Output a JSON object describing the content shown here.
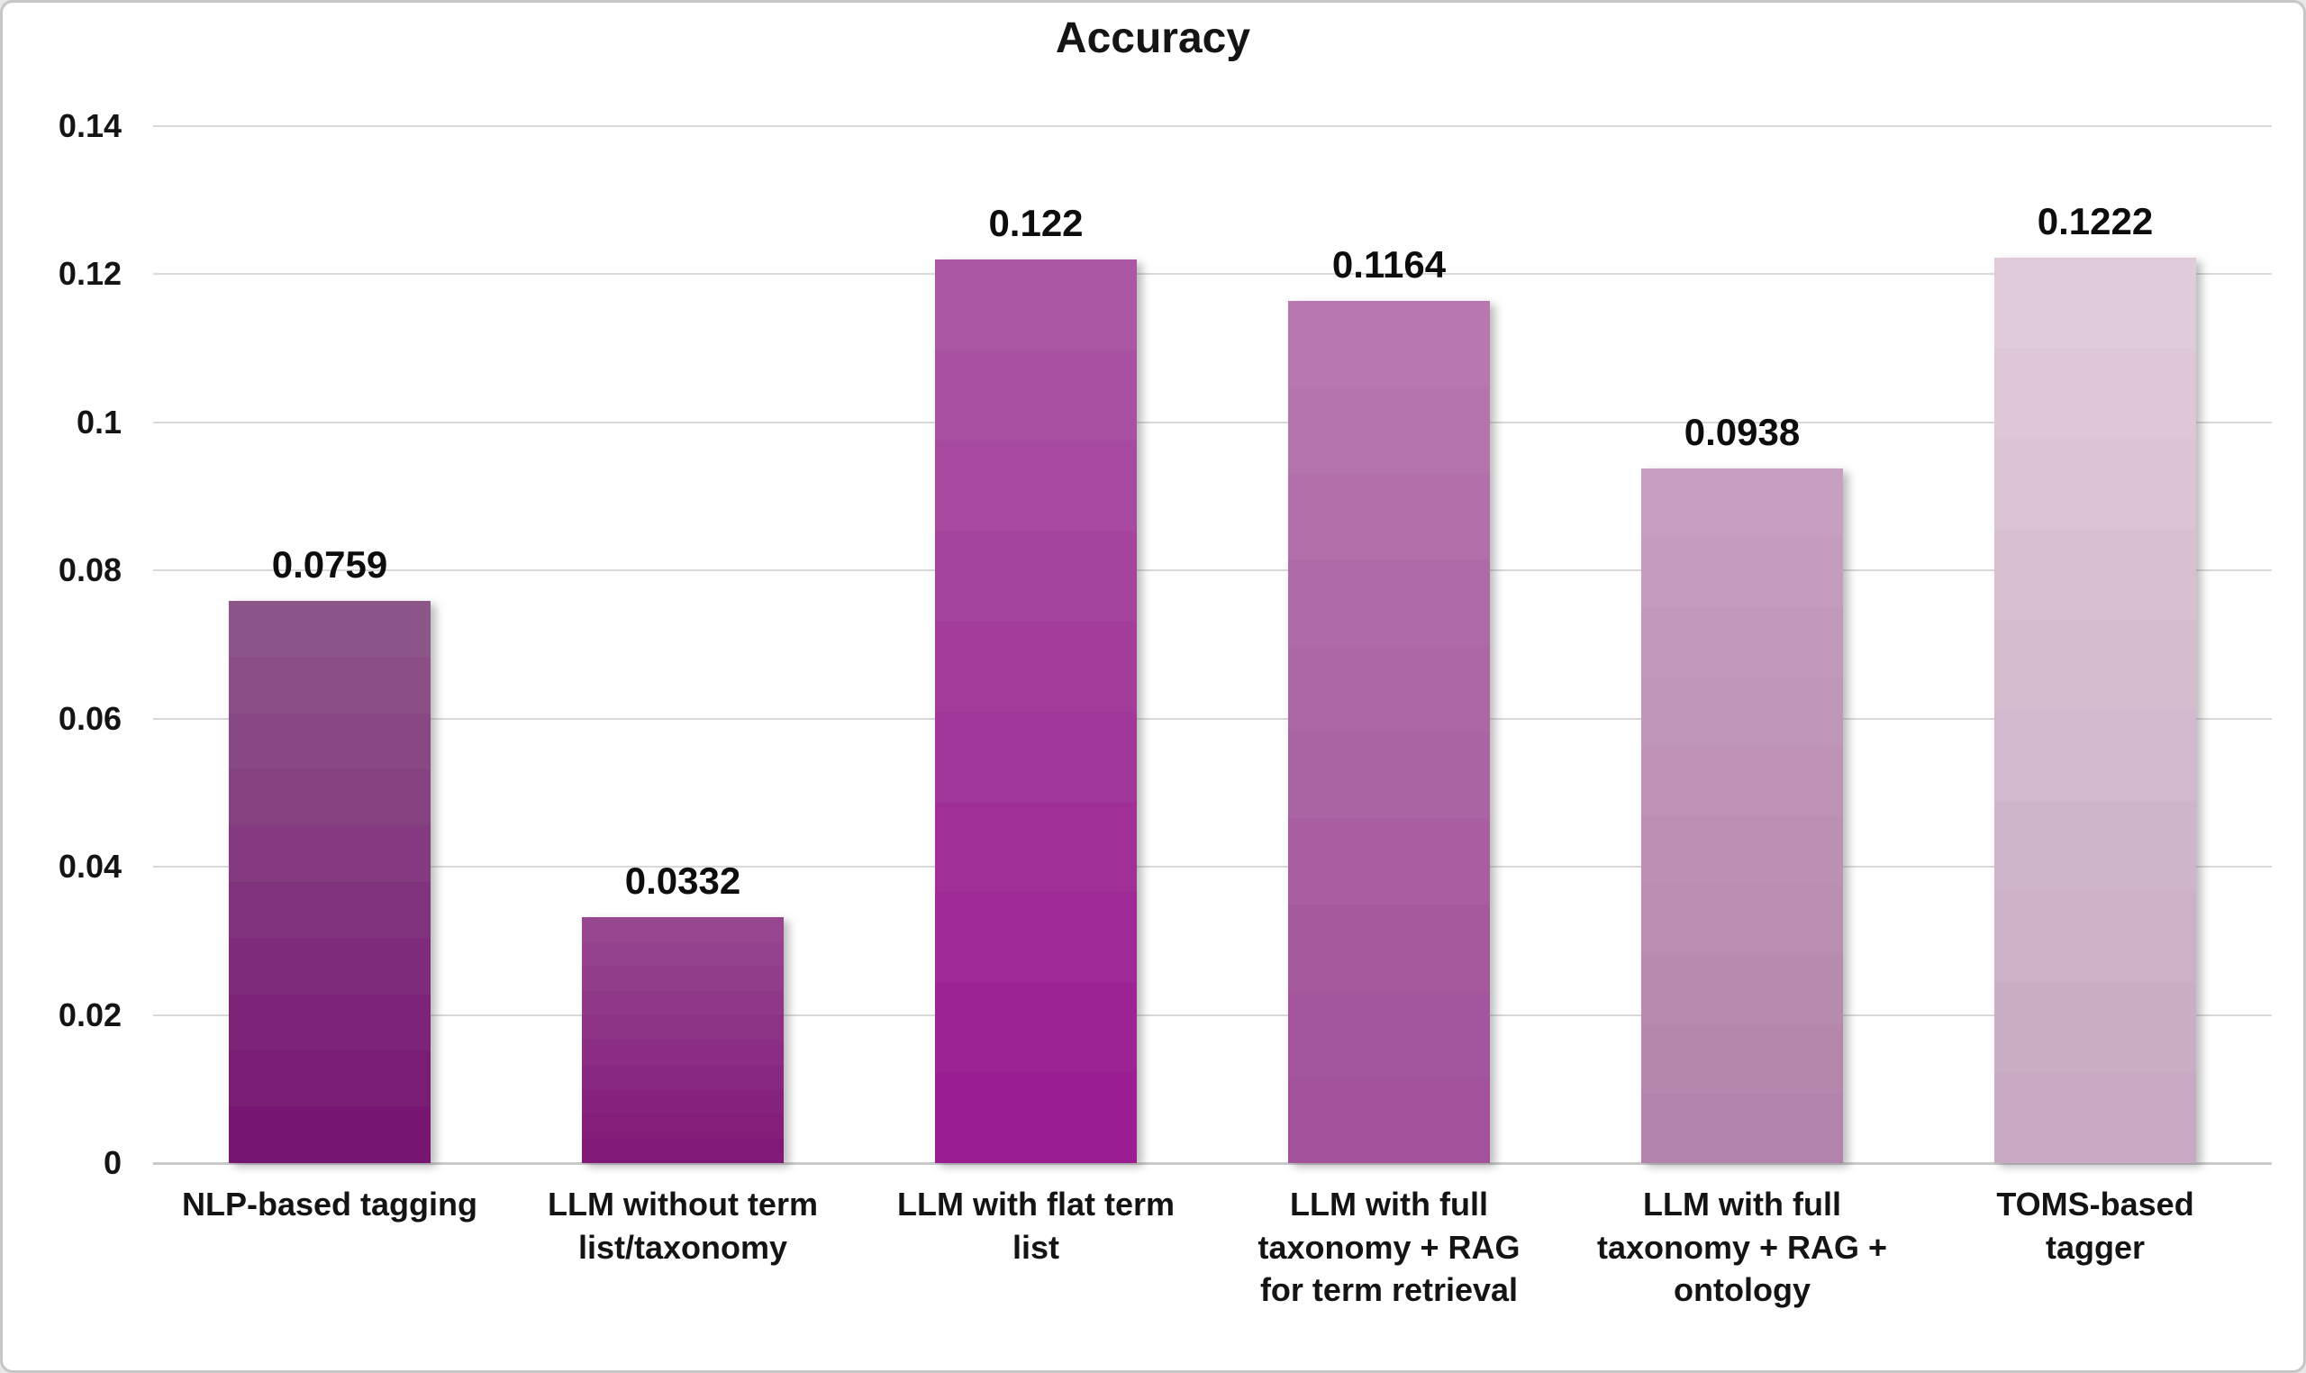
{
  "chart_data": {
    "type": "bar",
    "title": "Accuracy",
    "xlabel": "",
    "ylabel": "",
    "categories": [
      "NLP-based tagging",
      "LLM without term list/taxonomy",
      "LLM with flat term list",
      "LLM with full taxonomy + RAG for term retrieval",
      "LLM with full taxonomy + RAG + ontology",
      "TOMS-based tagger"
    ],
    "category_display": [
      "NLP-based tagging",
      "LLM without term\nlist/taxonomy",
      "LLM with flat term\nlist",
      "LLM with full\ntaxonomy + RAG\nfor term retrieval",
      "LLM with full\ntaxonomy + RAG +\nontology",
      "TOMS-based\ntagger"
    ],
    "values": [
      0.0759,
      0.0332,
      0.122,
      0.1164,
      0.0938,
      0.1222
    ],
    "value_labels": [
      "0.0759",
      "0.0332",
      "0.122",
      "0.1164",
      "0.0938",
      "0.1222"
    ],
    "ylim": [
      0,
      0.14
    ],
    "yticks": {
      "values": [
        0.14,
        0.12,
        0.1,
        0.08,
        0.06,
        0.04,
        0.02,
        0
      ],
      "labels": [
        "0.14",
        "0.12",
        "0.1",
        "0.08",
        "0.06",
        "0.04",
        "0.02",
        "0"
      ]
    },
    "grid": "horizontal-only",
    "legend": "none",
    "bar_gradients": [
      {
        "top": "#8d5689",
        "bottom": "#771672"
      },
      {
        "top": "#96478f",
        "bottom": "#811979"
      },
      {
        "top": "#ab57a3",
        "bottom": "#9a1d92"
      },
      {
        "top": "#b678ae",
        "bottom": "#a1529a"
      },
      {
        "top": "#c79fc0",
        "bottom": "#b384ab"
      },
      {
        "top": "#e0cbdb",
        "bottom": "#c7aac1"
      }
    ],
    "colors": {
      "background": "#ffffff",
      "frame_border": "#c6c6c6",
      "gridline": "#d9d9d9",
      "axis_baseline": "#c9c9c9",
      "text": "#141414"
    }
  }
}
